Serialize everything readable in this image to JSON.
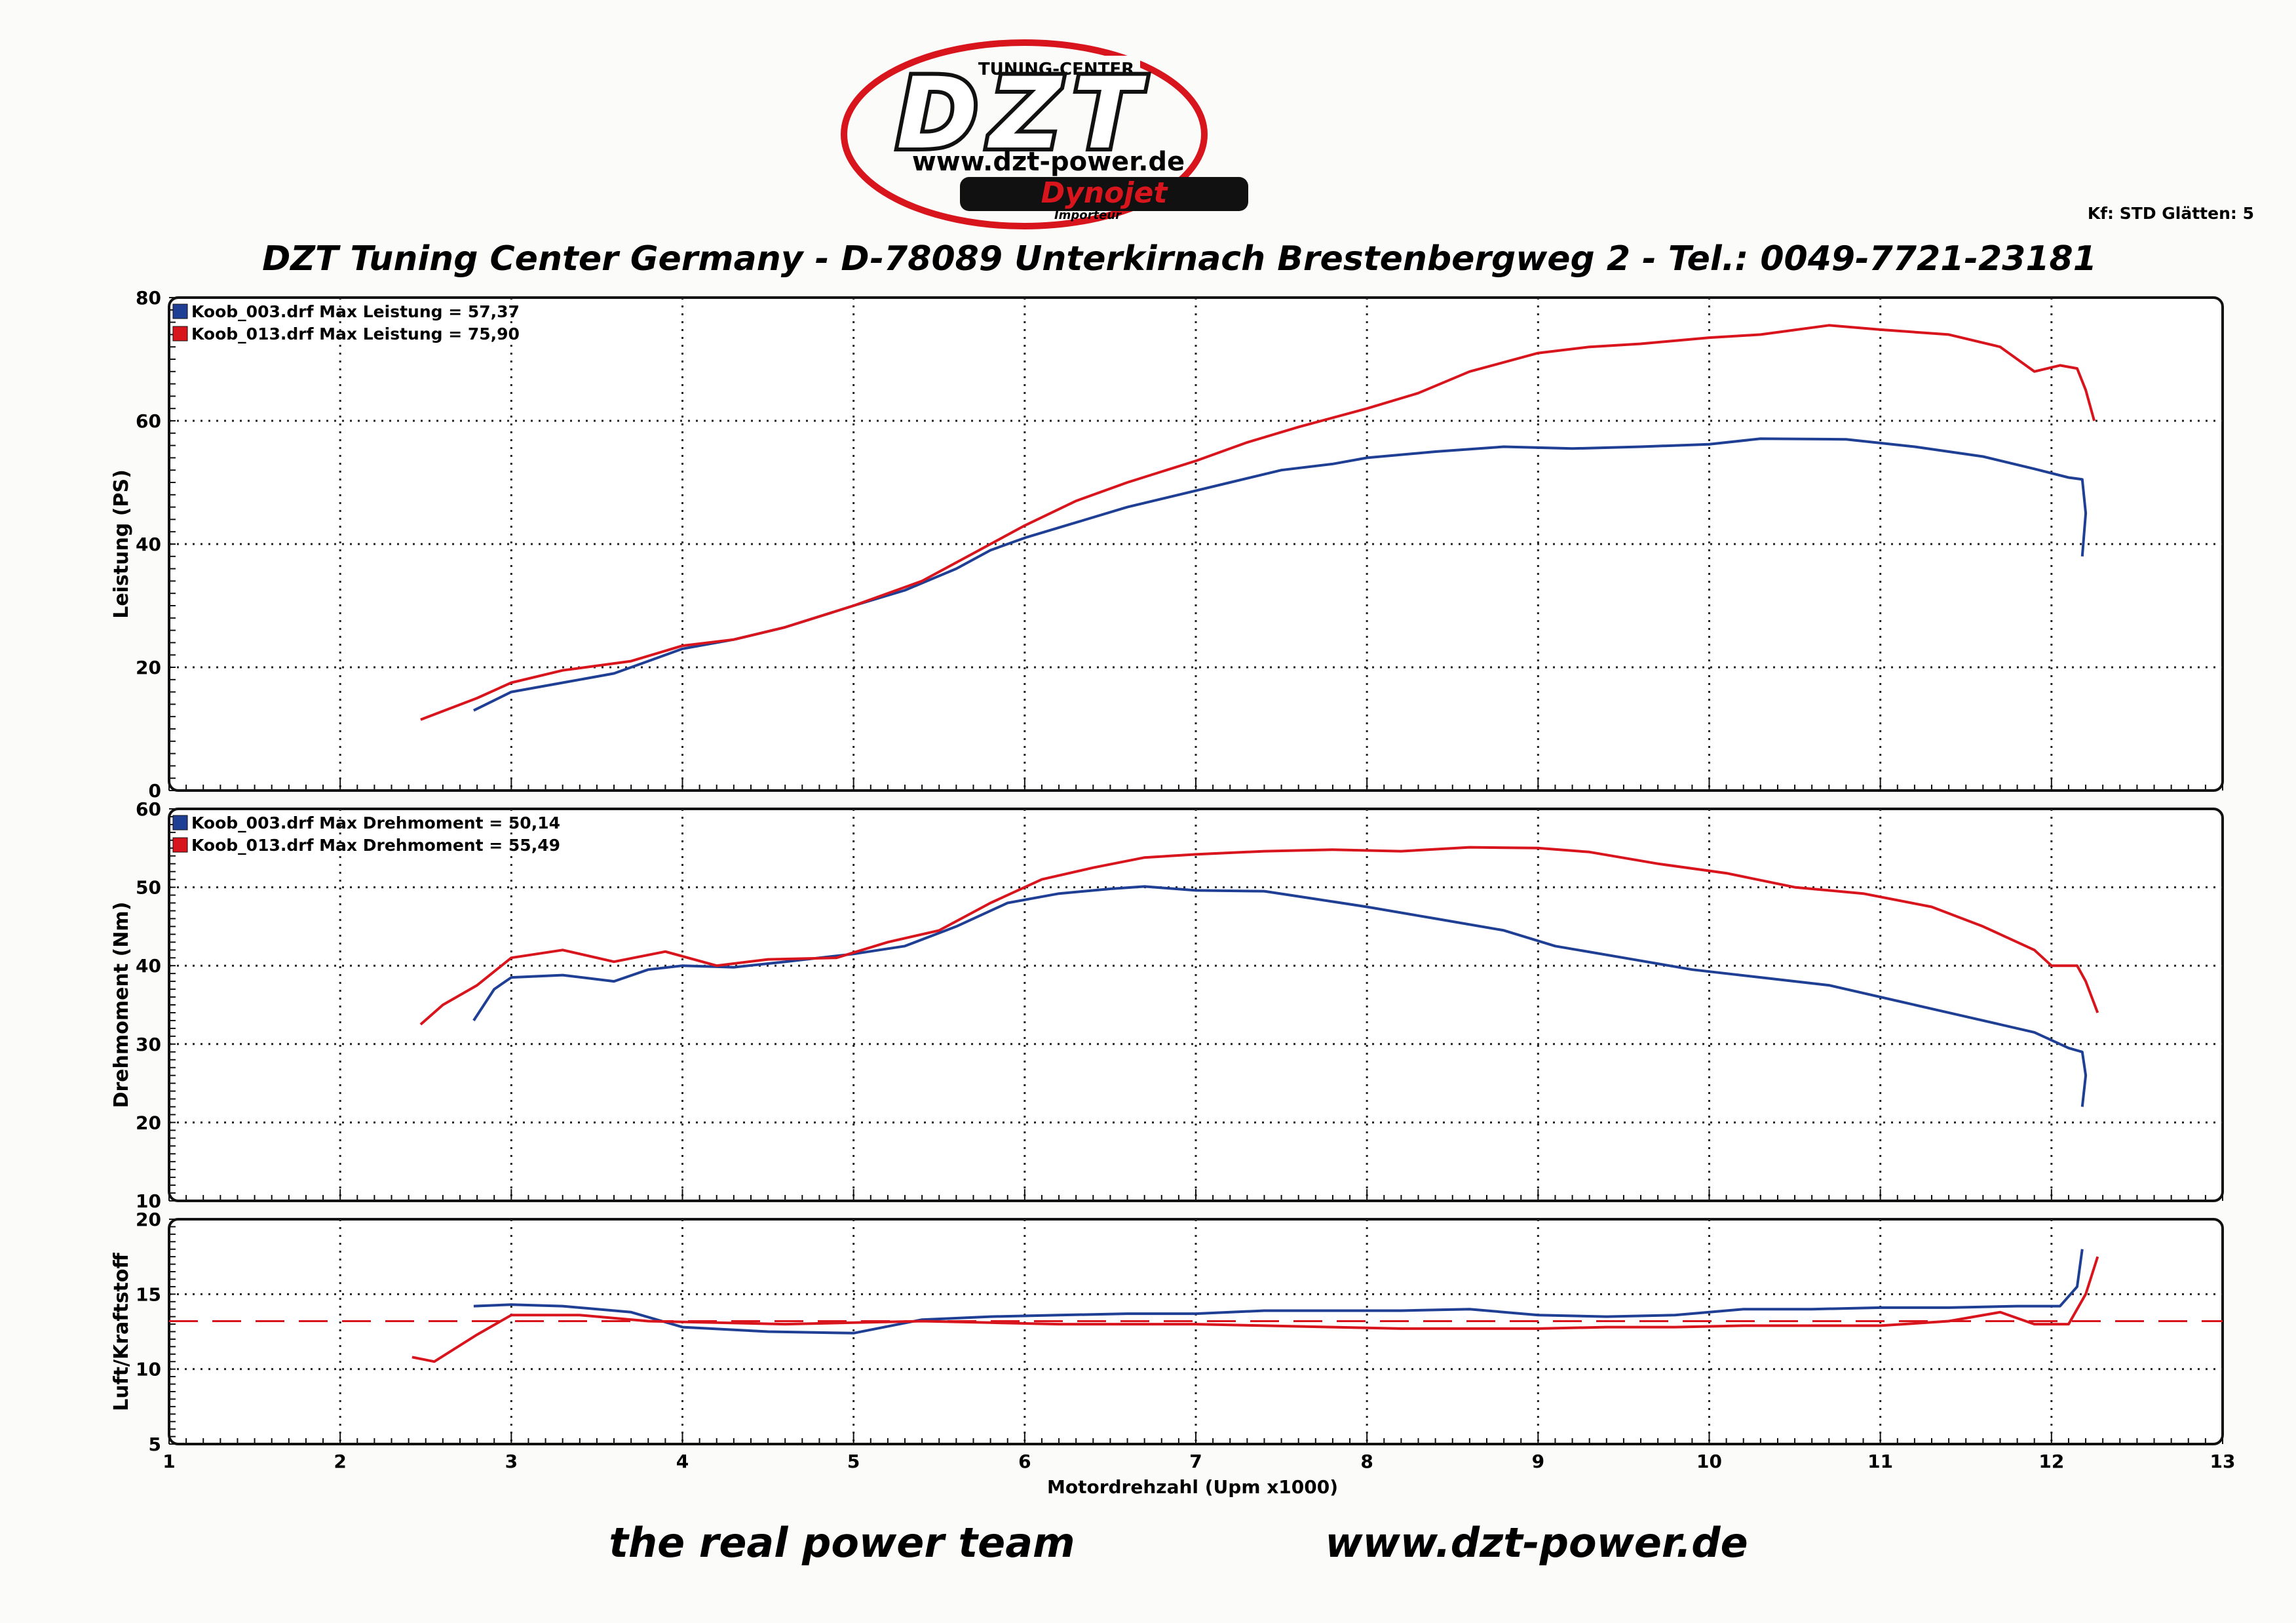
{
  "header": {
    "logo": {
      "tuning_center": "TUNING-CENTER",
      "brand": "DZT",
      "url": "www.dzt-power.de",
      "dynojet": "Dynojet",
      "importeur": "Importeur"
    },
    "settings": "Kf: STD  Glätten: 5",
    "title": "DZT Tuning Center Germany - D-78089 Unterkirnach   Brestenbergweg 2 - Tel.: 0049-7721-23181"
  },
  "footer": {
    "slogan": "the real power team",
    "url": "www.dzt-power.de"
  },
  "colors": {
    "run_003": "#1f3f94",
    "run_013": "#d8141c",
    "grid": "#222222",
    "target_line": "#d8141c"
  },
  "chart_data": [
    {
      "type": "line",
      "title": "",
      "xlabel": "Motordrehzahl (Upm x1000)",
      "ylabel": "Leistung (PS)",
      "xlim": [
        1,
        13
      ],
      "ylim": [
        0,
        80
      ],
      "xticks": [
        1,
        2,
        3,
        4,
        5,
        6,
        7,
        8,
        9,
        10,
        11,
        12,
        13
      ],
      "yticks": [
        0,
        20,
        40,
        60,
        80
      ],
      "grid": true,
      "legend_position": "top-left",
      "series": [
        {
          "name": "Koob_003.drf Max Leistung = 57,37",
          "color": "#1f3f94",
          "points": [
            [
              2.78,
              13
            ],
            [
              3.0,
              16
            ],
            [
              3.3,
              17.5
            ],
            [
              3.6,
              19
            ],
            [
              3.8,
              21
            ],
            [
              4.0,
              23
            ],
            [
              4.3,
              24.5
            ],
            [
              4.6,
              26.5
            ],
            [
              5.0,
              30
            ],
            [
              5.3,
              32.5
            ],
            [
              5.6,
              36
            ],
            [
              5.8,
              39
            ],
            [
              6.0,
              41
            ],
            [
              6.3,
              43.5
            ],
            [
              6.6,
              46
            ],
            [
              6.9,
              48
            ],
            [
              7.2,
              50
            ],
            [
              7.5,
              52
            ],
            [
              7.8,
              53
            ],
            [
              8.0,
              54
            ],
            [
              8.4,
              55
            ],
            [
              8.8,
              55.8
            ],
            [
              9.2,
              55.5
            ],
            [
              9.6,
              55.8
            ],
            [
              10.0,
              56.2
            ],
            [
              10.3,
              57.1
            ],
            [
              10.8,
              57
            ],
            [
              11.2,
              55.8
            ],
            [
              11.6,
              54.2
            ],
            [
              11.9,
              52.2
            ],
            [
              12.1,
              50.8
            ],
            [
              12.18,
              50.5
            ],
            [
              12.2,
              45
            ],
            [
              12.18,
              38
            ]
          ]
        },
        {
          "name": "Koob_013.drf Max Leistung = 75,90",
          "color": "#d8141c",
          "points": [
            [
              2.47,
              11.5
            ],
            [
              2.8,
              15
            ],
            [
              3.0,
              17.5
            ],
            [
              3.3,
              19.5
            ],
            [
              3.7,
              21
            ],
            [
              4.0,
              23.5
            ],
            [
              4.3,
              24.5
            ],
            [
              4.6,
              26.5
            ],
            [
              5.0,
              30
            ],
            [
              5.4,
              34
            ],
            [
              5.7,
              38.5
            ],
            [
              6.0,
              43
            ],
            [
              6.3,
              47
            ],
            [
              6.6,
              50
            ],
            [
              7.0,
              53.5
            ],
            [
              7.3,
              56.5
            ],
            [
              7.6,
              59
            ],
            [
              8.0,
              62
            ],
            [
              8.3,
              64.5
            ],
            [
              8.6,
              68
            ],
            [
              9.0,
              71
            ],
            [
              9.3,
              72
            ],
            [
              9.6,
              72.5
            ],
            [
              10.0,
              73.5
            ],
            [
              10.3,
              74
            ],
            [
              10.7,
              75.5
            ],
            [
              11.0,
              74.8
            ],
            [
              11.4,
              74
            ],
            [
              11.7,
              72
            ],
            [
              11.9,
              68
            ],
            [
              12.05,
              69
            ],
            [
              12.15,
              68.5
            ],
            [
              12.2,
              65
            ],
            [
              12.25,
              60
            ]
          ]
        }
      ]
    },
    {
      "type": "line",
      "title": "",
      "xlabel": "Motordrehzahl (Upm x1000)",
      "ylabel": "Drehmoment (Nm)",
      "xlim": [
        1,
        13
      ],
      "ylim": [
        10,
        60
      ],
      "xticks": [
        1,
        2,
        3,
        4,
        5,
        6,
        7,
        8,
        9,
        10,
        11,
        12,
        13
      ],
      "yticks": [
        10,
        20,
        30,
        40,
        50,
        60
      ],
      "grid": true,
      "legend_position": "top-left",
      "series": [
        {
          "name": "Koob_003.drf Max Drehmoment = 50,14",
          "color": "#1f3f94",
          "points": [
            [
              2.78,
              33
            ],
            [
              2.9,
              37
            ],
            [
              3.0,
              38.5
            ],
            [
              3.3,
              38.8
            ],
            [
              3.6,
              38
            ],
            [
              3.8,
              39.5
            ],
            [
              4.0,
              40
            ],
            [
              4.3,
              39.8
            ],
            [
              4.6,
              40.5
            ],
            [
              5.0,
              41.5
            ],
            [
              5.3,
              42.5
            ],
            [
              5.6,
              45
            ],
            [
              5.9,
              48
            ],
            [
              6.2,
              49.2
            ],
            [
              6.5,
              49.8
            ],
            [
              6.7,
              50.1
            ],
            [
              7.0,
              49.6
            ],
            [
              7.4,
              49.5
            ],
            [
              7.7,
              48.5
            ],
            [
              8.0,
              47.5
            ],
            [
              8.4,
              46
            ],
            [
              8.8,
              44.5
            ],
            [
              9.1,
              42.5
            ],
            [
              9.5,
              41
            ],
            [
              9.9,
              39.5
            ],
            [
              10.3,
              38.5
            ],
            [
              10.7,
              37.5
            ],
            [
              11.1,
              35.5
            ],
            [
              11.5,
              33.5
            ],
            [
              11.9,
              31.5
            ],
            [
              12.1,
              29.5
            ],
            [
              12.18,
              29
            ],
            [
              12.2,
              26
            ],
            [
              12.18,
              22
            ]
          ]
        },
        {
          "name": "Koob_013.drf Max Drehmoment = 55,49",
          "color": "#d8141c",
          "points": [
            [
              2.47,
              32.5
            ],
            [
              2.6,
              35
            ],
            [
              2.8,
              37.5
            ],
            [
              3.0,
              41
            ],
            [
              3.3,
              42
            ],
            [
              3.6,
              40.5
            ],
            [
              3.9,
              41.8
            ],
            [
              4.2,
              40
            ],
            [
              4.5,
              40.8
            ],
            [
              4.9,
              41
            ],
            [
              5.2,
              43
            ],
            [
              5.5,
              44.5
            ],
            [
              5.8,
              48
            ],
            [
              6.1,
              51
            ],
            [
              6.4,
              52.5
            ],
            [
              6.7,
              53.8
            ],
            [
              7.0,
              54.2
            ],
            [
              7.4,
              54.6
            ],
            [
              7.8,
              54.8
            ],
            [
              8.2,
              54.6
            ],
            [
              8.6,
              55.1
            ],
            [
              9.0,
              55
            ],
            [
              9.3,
              54.5
            ],
            [
              9.7,
              53
            ],
            [
              10.1,
              51.8
            ],
            [
              10.5,
              50
            ],
            [
              10.9,
              49.2
            ],
            [
              11.3,
              47.5
            ],
            [
              11.6,
              45
            ],
            [
              11.9,
              42
            ],
            [
              12.0,
              40
            ],
            [
              12.15,
              40
            ],
            [
              12.2,
              38
            ],
            [
              12.27,
              34
            ]
          ]
        }
      ]
    },
    {
      "type": "line",
      "title": "",
      "xlabel": "Motordrehzahl (Upm x1000)",
      "ylabel": "Luft/Kraftstoff",
      "xlim": [
        1,
        13
      ],
      "ylim": [
        5,
        20
      ],
      "xticks": [
        1,
        2,
        3,
        4,
        5,
        6,
        7,
        8,
        9,
        10,
        11,
        12,
        13
      ],
      "yticks": [
        5,
        10,
        15,
        20
      ],
      "grid": true,
      "target_line": 13.2,
      "series": [
        {
          "name": "Koob_003.drf",
          "color": "#1f3f94",
          "points": [
            [
              2.78,
              14.2
            ],
            [
              3.0,
              14.3
            ],
            [
              3.3,
              14.2
            ],
            [
              3.7,
              13.8
            ],
            [
              4.0,
              12.8
            ],
            [
              4.5,
              12.5
            ],
            [
              5.0,
              12.4
            ],
            [
              5.4,
              13.3
            ],
            [
              5.8,
              13.5
            ],
            [
              6.2,
              13.6
            ],
            [
              6.6,
              13.7
            ],
            [
              7.0,
              13.7
            ],
            [
              7.4,
              13.9
            ],
            [
              7.8,
              13.9
            ],
            [
              8.2,
              13.9
            ],
            [
              8.6,
              14
            ],
            [
              9.0,
              13.6
            ],
            [
              9.4,
              13.5
            ],
            [
              9.8,
              13.6
            ],
            [
              10.2,
              14
            ],
            [
              10.6,
              14
            ],
            [
              11.0,
              14.1
            ],
            [
              11.4,
              14.1
            ],
            [
              11.8,
              14.2
            ],
            [
              12.05,
              14.2
            ],
            [
              12.15,
              15.5
            ],
            [
              12.18,
              18
            ]
          ]
        },
        {
          "name": "Koob_013.drf",
          "color": "#d8141c",
          "points": [
            [
              2.42,
              10.8
            ],
            [
              2.55,
              10.5
            ],
            [
              2.8,
              12.3
            ],
            [
              3.0,
              13.6
            ],
            [
              3.4,
              13.6
            ],
            [
              3.8,
              13.2
            ],
            [
              4.2,
              13.1
            ],
            [
              4.6,
              13
            ],
            [
              5.0,
              13.1
            ],
            [
              5.4,
              13.2
            ],
            [
              5.8,
              13.1
            ],
            [
              6.2,
              13
            ],
            [
              6.6,
              13
            ],
            [
              7.0,
              13
            ],
            [
              7.4,
              12.9
            ],
            [
              7.8,
              12.8
            ],
            [
              8.2,
              12.7
            ],
            [
              8.6,
              12.7
            ],
            [
              9.0,
              12.7
            ],
            [
              9.4,
              12.8
            ],
            [
              9.8,
              12.8
            ],
            [
              10.2,
              12.9
            ],
            [
              10.6,
              12.9
            ],
            [
              11.0,
              12.9
            ],
            [
              11.4,
              13.2
            ],
            [
              11.7,
              13.8
            ],
            [
              11.9,
              13
            ],
            [
              12.1,
              13
            ],
            [
              12.2,
              15
            ],
            [
              12.27,
              17.5
            ]
          ]
        }
      ]
    }
  ]
}
